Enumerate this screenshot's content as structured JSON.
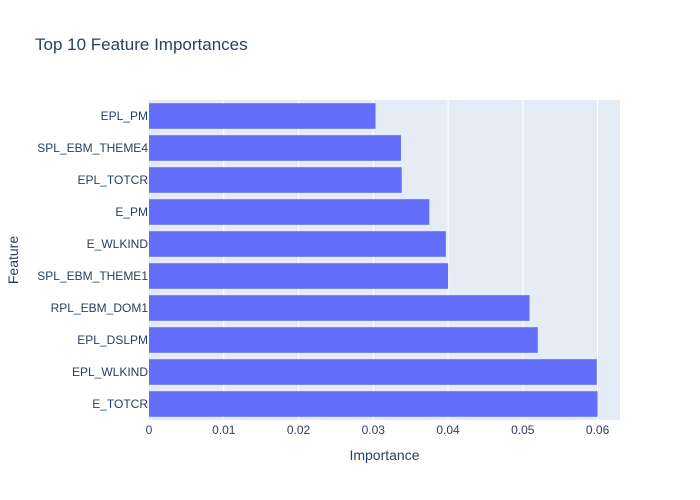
{
  "chart_data": {
    "type": "bar",
    "orientation": "horizontal",
    "title": "Top 10 Feature Importances",
    "xlabel": "Importance",
    "ylabel": "Feature",
    "categories": [
      "EPL_PM",
      "SPL_EBM_THEME4",
      "EPL_TOTCR",
      "E_PM",
      "E_WLKIND",
      "SPL_EBM_THEME1",
      "RPL_EBM_DOM1",
      "EPL_DSLPM",
      "EPL_WLKIND",
      "E_TOTCR"
    ],
    "values": [
      0.0303,
      0.0337,
      0.0338,
      0.0375,
      0.0397,
      0.04,
      0.0509,
      0.052,
      0.0599,
      0.06
    ],
    "xlim": [
      0,
      0.063
    ],
    "xticks": [
      0,
      0.01,
      0.02,
      0.03,
      0.04,
      0.05,
      0.06
    ],
    "xtick_labels": [
      "0",
      "0.01",
      "0.02",
      "0.03",
      "0.04",
      "0.05",
      "0.06"
    ],
    "grid": true,
    "colors": {
      "bar": "#636efa",
      "plot_bg": "#e5ecf6",
      "grid": "#ffffff",
      "text": "#2a3f5f"
    }
  }
}
